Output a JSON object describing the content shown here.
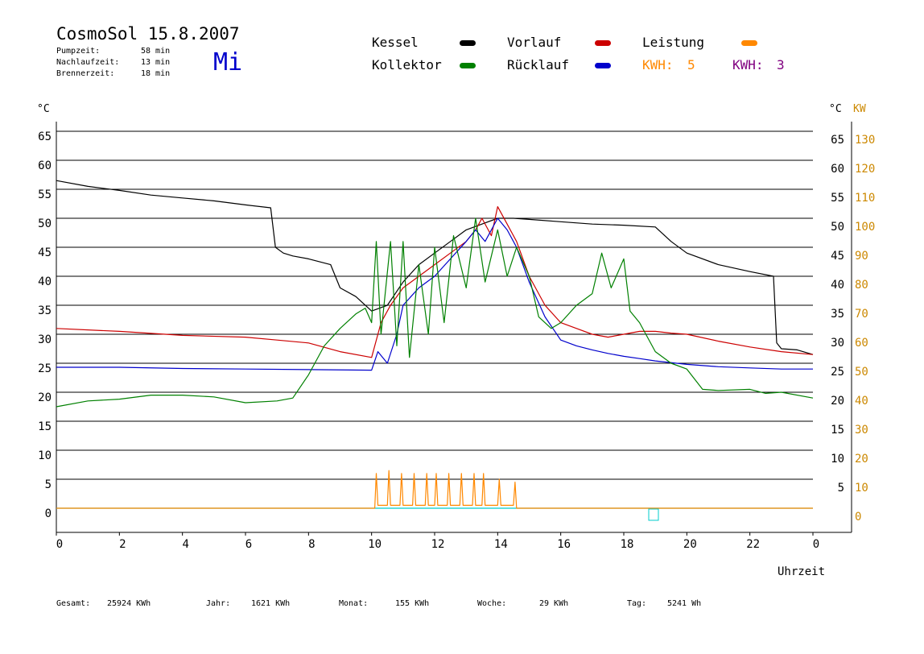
{
  "header": {
    "title": "CosmoSol 15.8.2007",
    "day": "Mi",
    "stats": [
      {
        "label": "Pumpzeit:",
        "value": "58 min"
      },
      {
        "label": "Nachlaufzeit:",
        "value": "13 min"
      },
      {
        "label": "Brennerzeit:",
        "value": "18 min"
      }
    ]
  },
  "legend": {
    "kessel": "Kessel",
    "kollektor": "Kollektor",
    "vorlauf": "Vorlauf",
    "ruecklauf": "Rücklauf",
    "leistung": "Leistung",
    "kwh1_label": "KWH:",
    "kwh1_value": "5",
    "kwh2_label": "KWH:",
    "kwh2_value": "3"
  },
  "colors": {
    "kessel": "#000000",
    "kollektor": "#008000",
    "vorlauf": "#cc0000",
    "ruecklauf": "#0000cc",
    "leistung": "#ff8800",
    "kwh2": "#800080",
    "baseline": "#00cccc"
  },
  "footer": [
    {
      "label": "Gesamt:",
      "value": "25924 KWh"
    },
    {
      "label": "Jahr:",
      "value": "1621 KWh"
    },
    {
      "label": "Monat:",
      "value": "155 KWh"
    },
    {
      "label": "Woche:",
      "value": "29 KWh"
    },
    {
      "label": "Tag:",
      "value": "5241 Wh"
    }
  ],
  "chart_data": {
    "type": "line",
    "title": "CosmoSol 15.8.2007",
    "xlabel": "Uhrzeit",
    "ylabel_left": "°C",
    "ylabel_right": "°C",
    "ylabel_right2": "KW",
    "xlim": [
      0,
      24
    ],
    "ylim": [
      -4,
      66
    ],
    "x_tick_labels": [
      "0",
      "2",
      "4",
      "6",
      "8",
      "10",
      "12",
      "14",
      "16",
      "18",
      "20",
      "22",
      "0"
    ],
    "y_ticks": [
      0,
      5,
      10,
      15,
      20,
      25,
      30,
      35,
      40,
      45,
      50,
      55,
      60,
      65
    ],
    "kw_tick_labels": [
      "0",
      "10",
      "20",
      "30",
      "40",
      "50",
      "60",
      "70",
      "80",
      "90",
      "100",
      "110",
      "120",
      "130"
    ],
    "grid": true,
    "series": [
      {
        "name": "Kessel",
        "color": "#000000",
        "x": [
          0,
          1,
          2,
          3,
          4,
          5,
          6,
          6.8,
          6.95,
          7.2,
          7.5,
          8,
          8.7,
          9.0,
          9.5,
          10.0,
          10.5,
          11,
          11.5,
          12,
          12.5,
          13,
          13.5,
          14,
          14.5,
          15,
          16,
          17,
          18,
          19,
          19.5,
          20,
          21,
          22,
          22.75,
          22.85,
          23,
          23.5,
          24
        ],
        "y": [
          56.5,
          55.5,
          54.8,
          54,
          53.5,
          53,
          52.3,
          51.8,
          45,
          44,
          43.5,
          43,
          42,
          38,
          36.5,
          34,
          35,
          39,
          42,
          44,
          46,
          48,
          49,
          50,
          50,
          49.8,
          49.4,
          49,
          48.8,
          48.5,
          46,
          44,
          42,
          40.8,
          40,
          28.5,
          27.5,
          27.3,
          26.5
        ]
      },
      {
        "name": "Vorlauf",
        "color": "#cc0000",
        "x": [
          0,
          2,
          4,
          6,
          7,
          8,
          9,
          10,
          10.3,
          10.6,
          11,
          11.5,
          12,
          12.5,
          13,
          13.3,
          13.5,
          13.8,
          14,
          14.3,
          14.6,
          15,
          15.5,
          16,
          16.5,
          17,
          17.5,
          18,
          18.5,
          19,
          19.5,
          20,
          21,
          22,
          23,
          24
        ],
        "y": [
          31,
          30.5,
          29.8,
          29.5,
          29,
          28.5,
          27,
          26,
          32,
          35,
          38,
          40,
          42,
          44,
          46,
          48,
          50,
          47,
          52,
          49,
          46,
          40,
          35,
          32,
          31,
          30,
          29.5,
          30,
          30.5,
          30.5,
          30.2,
          30,
          28.8,
          27.8,
          27,
          26.5
        ]
      },
      {
        "name": "Rücklauf",
        "color": "#0000cc",
        "x": [
          0,
          2,
          4,
          6,
          8,
          10,
          10.2,
          10.5,
          10.8,
          11,
          11.5,
          12,
          12.5,
          13,
          13.3,
          13.6,
          14,
          14.3,
          14.6,
          15,
          15.5,
          16,
          16.5,
          17,
          17.5,
          18,
          18.5,
          19,
          20,
          21,
          22,
          23,
          24
        ],
        "y": [
          24.3,
          24.3,
          24.1,
          24,
          23.9,
          23.8,
          27,
          25,
          30,
          35,
          38,
          40,
          43,
          46,
          48,
          46,
          50,
          48,
          45,
          39,
          33,
          29,
          28,
          27.3,
          26.7,
          26.2,
          25.8,
          25.4,
          24.8,
          24.4,
          24.2,
          24,
          24
        ]
      },
      {
        "name": "Kollektor",
        "color": "#008000",
        "x": [
          0,
          1,
          2,
          3,
          4,
          5,
          6,
          7,
          7.5,
          8,
          8.5,
          9,
          9.5,
          9.8,
          10,
          10.15,
          10.3,
          10.6,
          10.8,
          11,
          11.2,
          11.5,
          11.8,
          12,
          12.3,
          12.6,
          13,
          13.3,
          13.6,
          14,
          14.3,
          14.6,
          15,
          15.3,
          15.7,
          16,
          16.5,
          17,
          17.3,
          17.6,
          18,
          18.2,
          18.5,
          19,
          19.5,
          20,
          20.5,
          21,
          22,
          22.5,
          23,
          24
        ],
        "y": [
          17.5,
          18.5,
          18.8,
          19.5,
          19.5,
          19.2,
          18.2,
          18.5,
          19,
          23,
          28,
          31,
          33.5,
          34.5,
          32,
          46,
          30,
          46,
          28,
          46,
          26,
          42,
          30,
          45,
          32,
          47,
          38,
          50,
          39,
          48,
          40,
          45,
          40,
          33,
          31,
          32,
          35,
          37,
          44,
          38,
          43,
          34,
          32,
          27,
          25,
          24,
          20.5,
          20.3,
          20.5,
          19.8,
          20,
          19
        ]
      },
      {
        "name": "Leistung",
        "color": "#ff8800",
        "axis": "KW",
        "x": [
          0,
          10,
          10.1,
          10.15,
          10.2,
          10.5,
          10.55,
          10.6,
          10.9,
          10.95,
          11,
          11.3,
          11.35,
          11.4,
          11.7,
          11.75,
          11.8,
          12,
          12.05,
          12.1,
          12.4,
          12.45,
          12.5,
          12.8,
          12.85,
          12.9,
          13.2,
          13.25,
          13.3,
          13.5,
          13.55,
          13.6,
          14,
          14.05,
          14.1,
          14.5,
          14.55,
          14.6,
          24
        ],
        "y": [
          0,
          0,
          0,
          12,
          1,
          1,
          13,
          1,
          1,
          12,
          1,
          1,
          12,
          1,
          1,
          12,
          1,
          1,
          12,
          1,
          1,
          12,
          1,
          1,
          12,
          1,
          1,
          12,
          1,
          1,
          12,
          1,
          1,
          10,
          1,
          1,
          9,
          0,
          0
        ]
      }
    ]
  }
}
